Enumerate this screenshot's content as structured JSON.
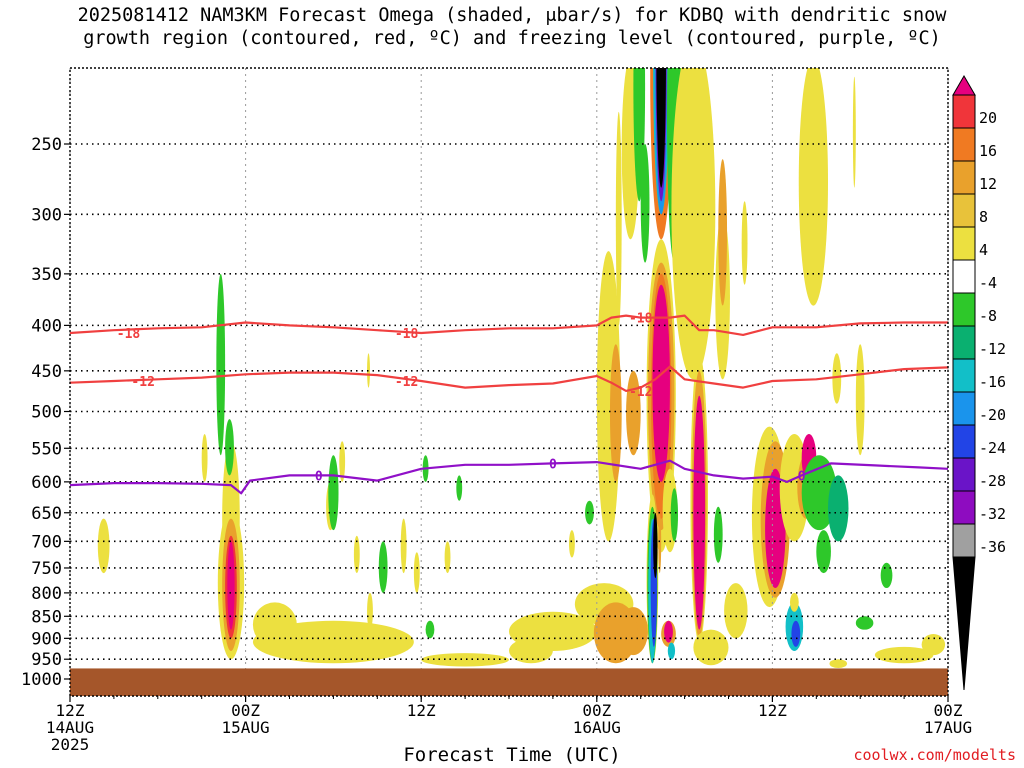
{
  "title": {
    "line1": "2025081412 NAM3KM Forecast Omega (shaded, μbar/s) for KDBQ with dendritic snow",
    "line2": "growth region (contoured, red, ºC) and freezing level (contoured, purple, ºC)"
  },
  "credit": "coolwx.com/modelts",
  "chart_data": {
    "type": "heatmap",
    "title": "2025081412 NAM3KM Forecast Omega (shaded, μbar/s) for KDBQ with dendritic snow growth region (contoured, red, ºC) and freezing level (contoured, purple, ºC)",
    "xlabel": "Forecast Time (UTC)",
    "ylabel": "",
    "x_unit": "hours since 2025-08-14 12Z",
    "xlim": [
      0,
      60
    ],
    "x_ticks": [
      {
        "x": 0,
        "line1": "12Z",
        "line2": "14AUG",
        "line3": "2025"
      },
      {
        "x": 12,
        "line1": "00Z",
        "line2": "15AUG",
        "line3": ""
      },
      {
        "x": 24,
        "line1": "12Z",
        "line2": "",
        "line3": ""
      },
      {
        "x": 36,
        "line1": "00Z",
        "line2": "16AUG",
        "line3": ""
      },
      {
        "x": 48,
        "line1": "12Z",
        "line2": "",
        "line3": ""
      },
      {
        "x": 60,
        "line1": "00Z",
        "line2": "17AUG",
        "line3": ""
      }
    ],
    "y_scale": "log",
    "ylim": [
      1000,
      200
    ],
    "y_ticks": [
      "250",
      "300",
      "350",
      "400",
      "450",
      "500",
      "550",
      "600",
      "650",
      "700",
      "750",
      "800",
      "850",
      "900",
      "950",
      "1000"
    ],
    "ground_level_hpa": 973,
    "colorbar": {
      "labels": [
        "20",
        "16",
        "12",
        "8",
        "4",
        "-4",
        "-8",
        "-12",
        "-16",
        "-20",
        "-24",
        "-28",
        "-32",
        "-36"
      ],
      "colors": [
        "#e6007f",
        "#f0353a",
        "#f07a22",
        "#e9a12c",
        "#e8c23a",
        "#ece040",
        "#ffffff",
        "#2ec82a",
        "#0ab070",
        "#12bfc8",
        "#1a94ec",
        "#2244e6",
        "#6a14c8",
        "#8e0cc0",
        "#a0a0a0",
        "#000000"
      ]
    },
    "colors": {
      "dgz": "#f04040",
      "freezing": "#9010c8",
      "ground": "#a5562a"
    },
    "series": [
      {
        "name": "-18",
        "color": "#f04040",
        "points": [
          [
            0,
            408
          ],
          [
            3,
            405
          ],
          [
            6,
            403
          ],
          [
            9,
            402
          ],
          [
            12,
            397
          ],
          [
            15,
            400
          ],
          [
            18,
            402
          ],
          [
            21,
            405
          ],
          [
            24,
            408
          ],
          [
            27,
            405
          ],
          [
            30,
            403
          ],
          [
            33,
            403
          ],
          [
            36,
            400
          ],
          [
            37,
            392
          ],
          [
            38,
            390
          ],
          [
            39,
            392
          ],
          [
            40,
            392
          ],
          [
            41,
            392
          ],
          [
            42,
            390
          ],
          [
            43,
            405
          ],
          [
            44,
            405
          ],
          [
            46,
            410
          ],
          [
            48,
            402
          ],
          [
            51,
            402
          ],
          [
            54,
            398
          ],
          [
            57,
            397
          ],
          [
            60,
            397
          ]
        ],
        "labels": [
          [
            4,
            408
          ],
          [
            23,
            408
          ],
          [
            39,
            392
          ]
        ]
      },
      {
        "name": "-12",
        "color": "#f04040",
        "points": [
          [
            0,
            464
          ],
          [
            3,
            462
          ],
          [
            6,
            460
          ],
          [
            9,
            458
          ],
          [
            12,
            454
          ],
          [
            15,
            452
          ],
          [
            18,
            452
          ],
          [
            21,
            455
          ],
          [
            24,
            462
          ],
          [
            27,
            470
          ],
          [
            30,
            467
          ],
          [
            33,
            465
          ],
          [
            36,
            456
          ],
          [
            37,
            464
          ],
          [
            38,
            474
          ],
          [
            39,
            470
          ],
          [
            40,
            460
          ],
          [
            41,
            445
          ],
          [
            42,
            460
          ],
          [
            44,
            465
          ],
          [
            46,
            470
          ],
          [
            48,
            462
          ],
          [
            51,
            460
          ],
          [
            54,
            454
          ],
          [
            57,
            448
          ],
          [
            60,
            446
          ]
        ],
        "labels": [
          [
            5,
            462
          ],
          [
            23,
            462
          ],
          [
            39,
            474
          ]
        ]
      },
      {
        "name": "0",
        "color": "#9010c8",
        "points": [
          [
            0,
            605
          ],
          [
            3,
            602
          ],
          [
            6,
            602
          ],
          [
            9,
            603
          ],
          [
            11,
            605
          ],
          [
            11.7,
            618
          ],
          [
            12.3,
            598
          ],
          [
            15,
            590
          ],
          [
            18,
            590
          ],
          [
            21,
            598
          ],
          [
            24,
            580
          ],
          [
            27,
            574
          ],
          [
            30,
            574
          ],
          [
            33,
            572
          ],
          [
            36,
            570
          ],
          [
            39,
            580
          ],
          [
            41,
            568
          ],
          [
            42,
            580
          ],
          [
            44,
            590
          ],
          [
            46,
            595
          ],
          [
            48,
            592
          ],
          [
            49,
            600
          ],
          [
            50,
            590
          ],
          [
            52,
            572
          ],
          [
            55,
            575
          ],
          [
            58,
            578
          ],
          [
            60,
            580
          ]
        ],
        "labels": [
          [
            17,
            590
          ],
          [
            33,
            572
          ],
          [
            50,
            590
          ]
        ]
      }
    ]
  }
}
